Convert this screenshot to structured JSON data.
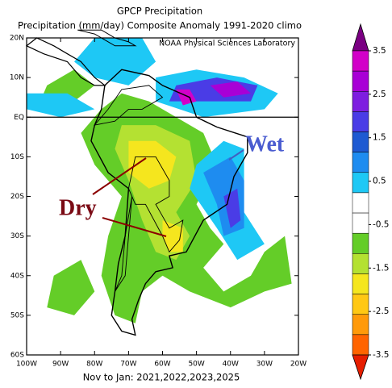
{
  "chart_data": {
    "type": "map",
    "title": "GPCP Precipitation",
    "subtitle": "Precipitation (mm/day) Composite Anomaly 1991-2020 climo",
    "credit": "NOAA Physical Sciences Laboratory",
    "caption": "Nov to Jan: 2021,2022,2023,2025",
    "annotations": [
      "Dry",
      "Wet"
    ],
    "xlim": [
      -100,
      -20
    ],
    "ylim": [
      -60,
      20
    ],
    "xticks": [
      {
        "value": -100,
        "label": "100W"
      },
      {
        "value": -90,
        "label": "90W"
      },
      {
        "value": -80,
        "label": "80W"
      },
      {
        "value": -70,
        "label": "70W"
      },
      {
        "value": -60,
        "label": "60W"
      },
      {
        "value": -50,
        "label": "50W"
      },
      {
        "value": -40,
        "label": "40W"
      },
      {
        "value": -30,
        "label": "30W"
      },
      {
        "value": -20,
        "label": "20W"
      }
    ],
    "yticks": [
      {
        "value": 20,
        "label": "20N"
      },
      {
        "value": 10,
        "label": "10N"
      },
      {
        "value": 0,
        "label": "EQ"
      },
      {
        "value": -10,
        "label": "10S"
      },
      {
        "value": -20,
        "label": "20S"
      },
      {
        "value": -30,
        "label": "30S"
      },
      {
        "value": -40,
        "label": "40S"
      },
      {
        "value": -50,
        "label": "50S"
      },
      {
        "value": -60,
        "label": "60S"
      }
    ],
    "colorbar": {
      "clim": [
        -3.5,
        3.5
      ],
      "ticks": [
        3.5,
        2.5,
        1.5,
        0.5,
        -0.5,
        -1.5,
        -2.5,
        -3.5
      ],
      "colors": [
        "#7a0082",
        "#d200c8",
        "#a800d6",
        "#7e1ee0",
        "#4a3ce6",
        "#1e5ad2",
        "#1e8cf0",
        "#1ec8f5",
        "#ffffff",
        "#ffffff",
        "#64cd28",
        "#b4e132",
        "#f5e61e",
        "#ffc814",
        "#ff9a0a",
        "#ff6400",
        "#e61e00"
      ]
    }
  }
}
